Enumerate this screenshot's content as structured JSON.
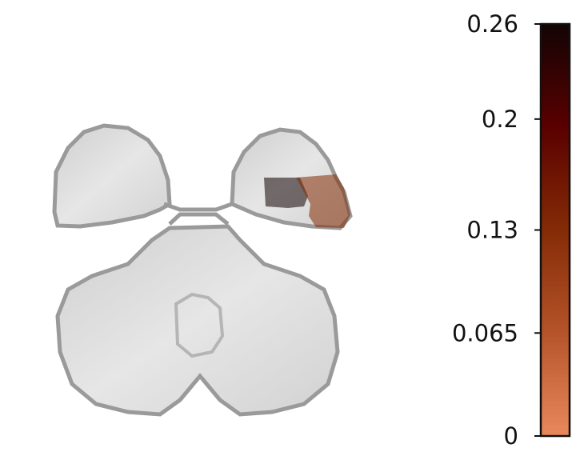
{
  "chart_data": {
    "type": "brain-map",
    "regions": [
      {
        "values": [
          0.26
        ]
      },
      {
        "values": [
          0.13
        ]
      }
    ],
    "overlay_opacity": 0.55,
    "clim": [
      0,
      0.26
    ],
    "colorbar_ticks": [
      0,
      0.065,
      0.13,
      0.2,
      0.26
    ],
    "colormap": [
      "#e8895c",
      "#b5542a",
      "#842b06",
      "#5a0000",
      "#120404"
    ]
  }
}
